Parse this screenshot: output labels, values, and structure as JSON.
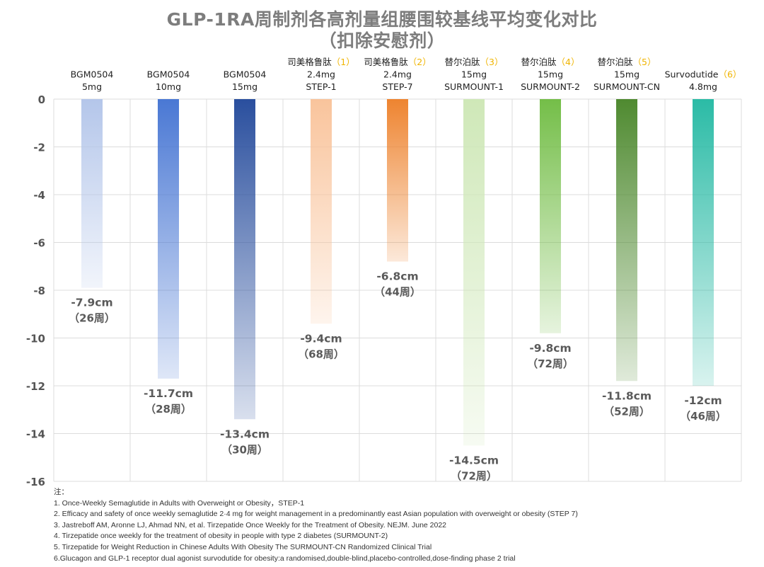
{
  "title_line1": "GLP-1RA周制剂各高剂量组腰围较基线平均变化对比",
  "title_line2": "（扣除安慰剂）",
  "chart_data": {
    "type": "bar",
    "ylim": [
      -16,
      0
    ],
    "yticks": [
      0,
      -2,
      -4,
      -6,
      -8,
      -10,
      -12,
      -14,
      -16
    ],
    "grid": true,
    "categories": [
      {
        "lines": [
          "BGM0504",
          "5mg"
        ],
        "ref": ""
      },
      {
        "lines": [
          "BGM0504",
          "10mg"
        ],
        "ref": ""
      },
      {
        "lines": [
          "BGM0504",
          "15mg"
        ],
        "ref": ""
      },
      {
        "lines": [
          "司美格鲁肽",
          "2.4mg",
          "STEP-1"
        ],
        "ref": "（1）"
      },
      {
        "lines": [
          "司美格鲁肽",
          "2.4mg",
          "STEP-7"
        ],
        "ref": "（2）"
      },
      {
        "lines": [
          "替尔泊肽",
          "15mg",
          "SURMOUNT-1"
        ],
        "ref": "（3）"
      },
      {
        "lines": [
          "替尔泊肽",
          "15mg",
          "SURMOUNT-2"
        ],
        "ref": "（4）"
      },
      {
        "lines": [
          "替尔泊肽",
          "15mg",
          "SURMOUNT-CN"
        ],
        "ref": "（5）"
      },
      {
        "lines": [
          "Survodutide",
          "4.8mg"
        ],
        "ref": "（6）"
      }
    ],
    "values": [
      -7.9,
      -11.7,
      -13.4,
      -9.4,
      -6.8,
      -14.5,
      -9.8,
      -11.8,
      -12
    ],
    "value_labels": [
      "-7.9cm",
      "-11.7cm",
      "-13.4cm",
      "-9.4cm",
      "-6.8cm",
      "-14.5cm",
      "-9.8cm",
      "-11.8cm",
      "-12cm"
    ],
    "week_labels": [
      "（26周）",
      "（28周）",
      "（30周）",
      "（68周）",
      "（44周）",
      "（72周）",
      "（72周）",
      "（52周）",
      "（46周）"
    ],
    "colors": [
      "#b4c6ea",
      "#4a78d4",
      "#2a4f9e",
      "#f9c49c",
      "#ee8430",
      "#cfe8b8",
      "#74be48",
      "#4f8a30",
      "#2bbba6"
    ],
    "ref_color": "#f0b400"
  },
  "notes": [
    "注：",
    "1. Once-Weekly Semaglutide in Adults with Overweight or Obesity，STEP-1",
    "2. Efficacy and safety of once weekly semaglutide 2·4 mg for weight management in a predominantly east Asian population with overweight or obesity (STEP 7)",
    "3. Jastreboff AM, Aronne LJ, Ahmad NN, et al. Tirzepatide Once Weekly for the Treatment of Obesity. NEJM. June 2022",
    "4. Tirzepatide once weekly for the treatment of obesity in people with type 2 diabetes (SURMOUNT-2)",
    "5. Tirzepatide for Weight Reduction in Chinese Adults With Obesity The SURMOUNT-CN Randomized Clinical Trial",
    "6.Glucagon and GLP-1 receptor dual agonist survodutide for obesity:a randomised,double-blind,placebo-controlled,dose-finding phase 2 trial"
  ]
}
